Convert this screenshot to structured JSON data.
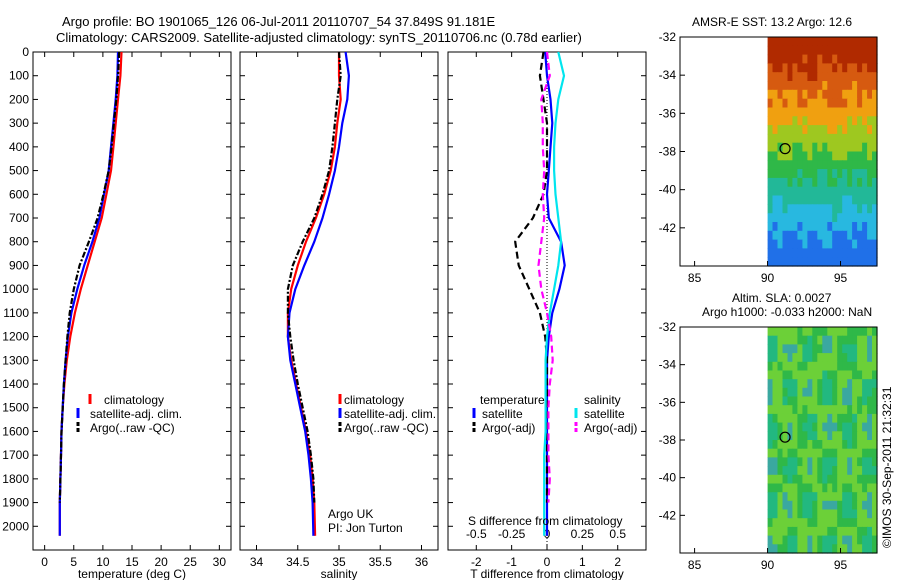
{
  "header": {
    "title_line1": "Argo profile: BO 1901065_126 06-Jul-2011 20110707_54 37.849S 91.181E",
    "title_line2": "Climatology: CARS2009. Satellite-adjusted climatology: synTS_20110706.nc (0.78d earlier)"
  },
  "colors": {
    "climatology": "#ff0000",
    "satellite": "#0000ff",
    "argo": "#000000",
    "salinity_satellite": "#00e5ee",
    "salinity_argo": "#ff00ff"
  },
  "chart_data": [
    {
      "id": "temperature",
      "type": "line",
      "xlabel": "temperature (deg C)",
      "ylabel": "",
      "xlim": [
        -2,
        32
      ],
      "ylim": [
        2100,
        0
      ],
      "xticks": [
        0,
        5,
        10,
        15,
        20,
        25,
        30
      ],
      "yticks": [
        0,
        100,
        200,
        300,
        400,
        500,
        600,
        700,
        800,
        900,
        1000,
        1100,
        1200,
        1300,
        1400,
        1500,
        1600,
        1700,
        1800,
        1900,
        2000
      ],
      "legend": {
        "position": "lower-middle",
        "labels": [
          "climatology",
          "satellite-adj. clim.",
          "Argo(..raw -QC)"
        ]
      },
      "series": [
        {
          "name": "climatology",
          "style": "solid",
          "x": [
            13.2,
            13.0,
            12.6,
            12.2,
            11.8,
            11.4,
            10.6,
            9.8,
            8.6,
            7.4,
            6.2,
            5.2,
            4.4,
            3.8,
            3.4,
            3.1,
            2.9,
            2.8,
            2.7,
            2.6,
            2.6
          ],
          "y": [
            0,
            100,
            200,
            300,
            400,
            500,
            600,
            700,
            800,
            900,
            1000,
            1100,
            1200,
            1300,
            1400,
            1500,
            1600,
            1700,
            1800,
            1900,
            2040
          ]
        },
        {
          "name": "satellite-adj. clim.",
          "style": "solid",
          "x": [
            12.6,
            12.5,
            12.2,
            11.8,
            11.4,
            11.0,
            10.2,
            9.4,
            8.2,
            6.8,
            5.6,
            4.6,
            4.0,
            3.6,
            3.3,
            3.1,
            2.9,
            2.8,
            2.7,
            2.6,
            2.6
          ],
          "y": [
            0,
            100,
            200,
            300,
            400,
            500,
            600,
            700,
            800,
            900,
            1000,
            1100,
            1200,
            1300,
            1400,
            1500,
            1600,
            1700,
            1800,
            1900,
            2040
          ]
        },
        {
          "name": "Argo(..raw -QC)",
          "style": "dashdot",
          "x": [
            12.8,
            12.6,
            12.3,
            11.9,
            11.5,
            11.0,
            10.1,
            9.1,
            7.6,
            6.0,
            5.0,
            4.3,
            3.9,
            3.6,
            3.3,
            3.1,
            2.9,
            2.8,
            2.7,
            2.6
          ],
          "y": [
            0,
            100,
            200,
            300,
            400,
            500,
            600,
            700,
            800,
            900,
            1000,
            1100,
            1200,
            1300,
            1400,
            1500,
            1600,
            1700,
            1800,
            1900
          ]
        }
      ]
    },
    {
      "id": "salinity",
      "type": "line",
      "xlabel": "salinity",
      "ylabel": "",
      "xlim": [
        33.8,
        36.2
      ],
      "ylim": [
        2100,
        0
      ],
      "xticks": [
        34,
        34.5,
        35,
        35.5,
        36
      ],
      "legend": {
        "position": "lower-middle",
        "labels": [
          "climatology",
          "satellite-adj. clim.",
          "Argo(..raw -QC)"
        ]
      },
      "annotation": {
        "line1": "Argo UK",
        "line2": "PI: Jon Turton"
      },
      "series": [
        {
          "name": "climatology",
          "style": "solid",
          "x": [
            35.0,
            35.0,
            35.02,
            34.98,
            34.95,
            34.9,
            34.82,
            34.72,
            34.6,
            34.5,
            34.42,
            34.38,
            34.38,
            34.42,
            34.48,
            34.54,
            34.6,
            34.65,
            34.68,
            34.7,
            34.71
          ],
          "y": [
            0,
            100,
            200,
            300,
            400,
            500,
            600,
            700,
            800,
            900,
            1000,
            1100,
            1200,
            1300,
            1400,
            1500,
            1600,
            1700,
            1800,
            1900,
            2040
          ]
        },
        {
          "name": "satellite-adj. clim.",
          "style": "solid",
          "x": [
            35.08,
            35.12,
            35.1,
            35.04,
            35.0,
            34.95,
            34.88,
            34.8,
            34.7,
            34.58,
            34.47,
            34.4,
            34.38,
            34.41,
            34.47,
            34.53,
            34.59,
            34.63,
            34.66,
            34.68,
            34.69
          ],
          "y": [
            0,
            100,
            200,
            300,
            400,
            500,
            600,
            700,
            800,
            900,
            1000,
            1100,
            1200,
            1300,
            1400,
            1500,
            1600,
            1700,
            1800,
            1900,
            2040
          ]
        },
        {
          "name": "Argo(..raw -QC)",
          "style": "dashdot",
          "x": [
            35.0,
            35.02,
            34.98,
            34.95,
            34.92,
            34.88,
            34.8,
            34.7,
            34.56,
            34.44,
            34.38,
            34.38,
            34.41,
            34.45,
            34.5,
            34.56,
            34.62,
            34.66,
            34.69,
            34.7
          ],
          "y": [
            0,
            100,
            200,
            300,
            400,
            500,
            600,
            700,
            800,
            900,
            1000,
            1100,
            1200,
            1300,
            1400,
            1500,
            1600,
            1700,
            1800,
            1900
          ]
        }
      ]
    },
    {
      "id": "difference",
      "type": "line",
      "xlabel": "T difference from climatology",
      "top_xlabel": "S difference from climatology",
      "xlim": [
        -2.8,
        2.8
      ],
      "ylim": [
        2100,
        0
      ],
      "xticks": [
        -2,
        -1,
        0,
        1,
        2
      ],
      "top_xticks": [
        "-0.5",
        "-0.25",
        "0",
        "0.25",
        "0.5"
      ],
      "legend": {
        "position": "lower-middle",
        "temperature_heading": "temperature",
        "salinity_heading": "salinity",
        "labels": [
          "satellite",
          "Argo(-adj)",
          "satellite",
          "Argo(-adj)"
        ]
      },
      "series": [
        {
          "name": "temperature satellite",
          "style": "solid",
          "x": [
            -0.05,
            0.0,
            0.1,
            0.15,
            0.1,
            0.05,
            0.0,
            0.05,
            0.4,
            0.5,
            0.35,
            0.15,
            0.05,
            0.0,
            0.0,
            0.0,
            0.0,
            0.0,
            0.0,
            0.0,
            0.0
          ],
          "y": [
            0,
            100,
            200,
            300,
            400,
            500,
            600,
            700,
            800,
            900,
            1000,
            1100,
            1200,
            1300,
            1400,
            1500,
            1600,
            1700,
            1800,
            1900,
            2040
          ]
        },
        {
          "name": "temperature Argo(-adj)",
          "style": "dashed",
          "x": [
            -0.1,
            -0.2,
            -0.1,
            0.0,
            0.0,
            0.0,
            -0.1,
            -0.4,
            -0.9,
            -0.8,
            -0.5,
            -0.2,
            -0.05,
            0.0,
            0.0,
            0.0,
            0.0,
            0.0,
            0.0,
            0.0
          ],
          "y": [
            0,
            100,
            200,
            300,
            400,
            500,
            600,
            700,
            800,
            900,
            1000,
            1100,
            1200,
            1300,
            1400,
            1500,
            1600,
            1700,
            1800,
            1900
          ]
        },
        {
          "name": "salinity satellite",
          "style": "solid",
          "x": [
            0.08,
            0.12,
            0.08,
            0.06,
            0.05,
            0.05,
            0.06,
            0.08,
            0.1,
            0.08,
            0.05,
            0.02,
            0.0,
            -0.01,
            -0.01,
            -0.01,
            -0.01,
            -0.02,
            -0.02,
            -0.02,
            -0.02
          ],
          "y": [
            0,
            100,
            200,
            300,
            400,
            500,
            600,
            700,
            800,
            900,
            1000,
            1100,
            1200,
            1300,
            1400,
            1500,
            1600,
            1700,
            1800,
            1900,
            2040
          ]
        },
        {
          "name": "salinity Argo(-adj)",
          "style": "dashed",
          "x": [
            0.0,
            0.02,
            -0.04,
            -0.03,
            -0.03,
            -0.02,
            -0.03,
            -0.02,
            -0.04,
            -0.06,
            -0.04,
            0.0,
            0.03,
            0.04,
            0.02,
            0.01,
            0.01,
            0.01,
            0.02,
            0.01
          ],
          "y": [
            0,
            100,
            200,
            300,
            400,
            500,
            600,
            700,
            800,
            900,
            1000,
            1100,
            1200,
            1300,
            1400,
            1500,
            1600,
            1700,
            1800,
            1900
          ]
        }
      ]
    },
    {
      "id": "sst_map",
      "type": "heatmap",
      "title": "AMSR-E SST: 13.2  Argo: 12.6",
      "xlim": [
        84,
        97.5
      ],
      "ylim": [
        -44,
        -32
      ],
      "xticks": [
        85,
        90,
        95
      ],
      "yticks": [
        -32,
        -34,
        -36,
        -38,
        -40,
        -42
      ],
      "data_lon_min": 90,
      "marker": {
        "lon": 91.2,
        "lat": -37.85
      },
      "colormap": [
        "#b02a00",
        "#d65a10",
        "#f0a010",
        "#9ec820",
        "#2fb848",
        "#22b898",
        "#28b8e0",
        "#2070e8"
      ]
    },
    {
      "id": "sla_map",
      "type": "heatmap",
      "title_line1": "Altim. SLA: 0.0027",
      "title_line2": "Argo h1000: -0.033 h2000: NaN",
      "xlim": [
        84,
        97.5
      ],
      "ylim": [
        -44,
        -32
      ],
      "xticks": [
        85,
        90,
        95
      ],
      "yticks": [
        -32,
        -34,
        -36,
        -38,
        -40,
        -42
      ],
      "data_lon_min": 90,
      "marker": {
        "lon": 91.2,
        "lat": -37.85
      },
      "colormap": [
        "#6cd038",
        "#2fb848",
        "#22b880",
        "#3aa8a0"
      ]
    }
  ],
  "footer": {
    "stamp": "©IMOS 30-Sep-2011 21:32:31"
  }
}
